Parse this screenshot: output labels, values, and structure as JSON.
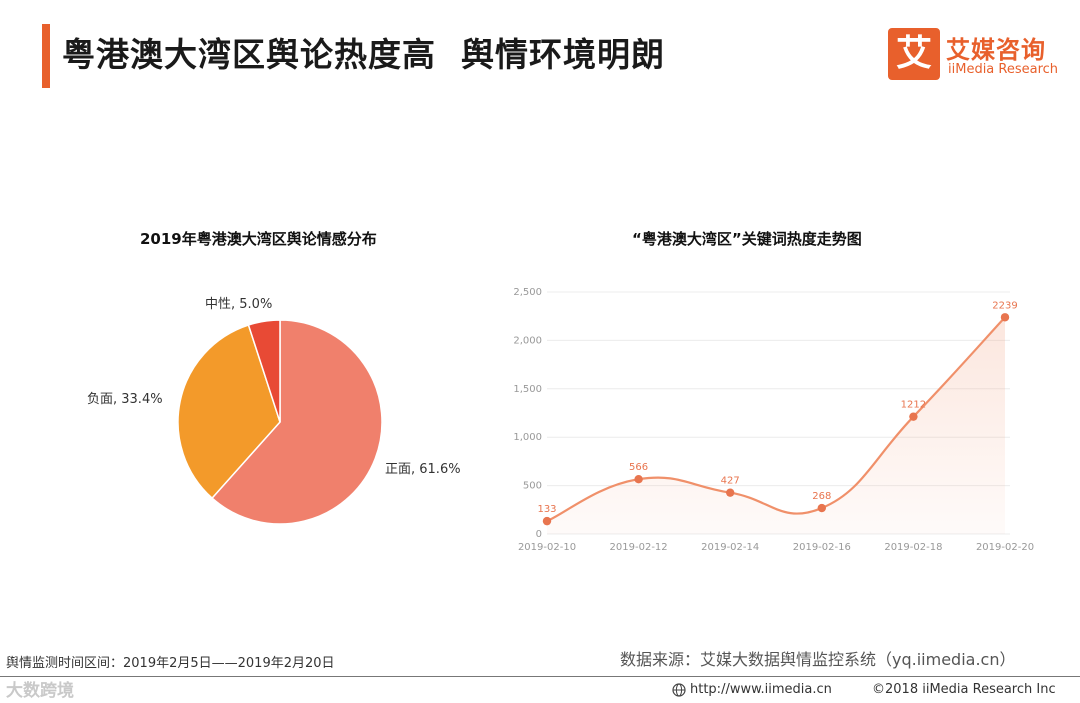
{
  "header": {
    "title": "粤港澳大湾区舆论热度高  舆情环境明朗",
    "logo_glyph": "艾",
    "logo_cn": "艾媒咨询",
    "logo_en": "iiMedia Research",
    "accent_color": "#e8602c"
  },
  "chart_data": [
    {
      "type": "pie",
      "title": "2019年粤港澳大湾区舆论情感分布",
      "slices": [
        {
          "label": "正面, 61.6%",
          "name": "正面",
          "value": 61.6,
          "color": "#f0806c"
        },
        {
          "label": "负面, 33.4%",
          "name": "负面",
          "value": 33.4,
          "color": "#f39a2a"
        },
        {
          "label": "中性, 5.0%",
          "name": "中性",
          "value": 5.0,
          "color": "#e84a35"
        }
      ]
    },
    {
      "type": "line",
      "title": "“粤港澳大湾区”关键词热度走势图",
      "x_ticks": [
        "2019-02-10",
        "2019-02-12",
        "2019-02-14",
        "2019-02-16",
        "2019-02-18",
        "2019-02-20"
      ],
      "y_ticks": [
        "0",
        "500",
        "1,000",
        "1,500",
        "2,000",
        "2,500"
      ],
      "ylim": [
        0,
        2500
      ],
      "points": [
        {
          "x": "2019-02-10",
          "y": 133,
          "label": "133"
        },
        {
          "x": "2019-02-12",
          "y": 566,
          "label": "566"
        },
        {
          "x": "2019-02-14",
          "y": 427,
          "label": "427"
        },
        {
          "x": "2019-02-16",
          "y": 268,
          "label": "268"
        },
        {
          "x": "2019-02-18",
          "y": 1212,
          "label": "1212"
        },
        {
          "x": "2019-02-20",
          "y": 2239,
          "label": "2239"
        }
      ],
      "line_color": "#f0906a",
      "grid": true
    }
  ],
  "footer": {
    "period": "舆情监测时间区间：2019年2月5日——2019年2月20日",
    "source": "数据来源：艾媒大数据舆情监控系统（yq.iimedia.cn）",
    "url": "http://www.iimedia.cn",
    "copyright": "©2018  iiMedia Research  Inc",
    "watermark": "大数跨境"
  }
}
